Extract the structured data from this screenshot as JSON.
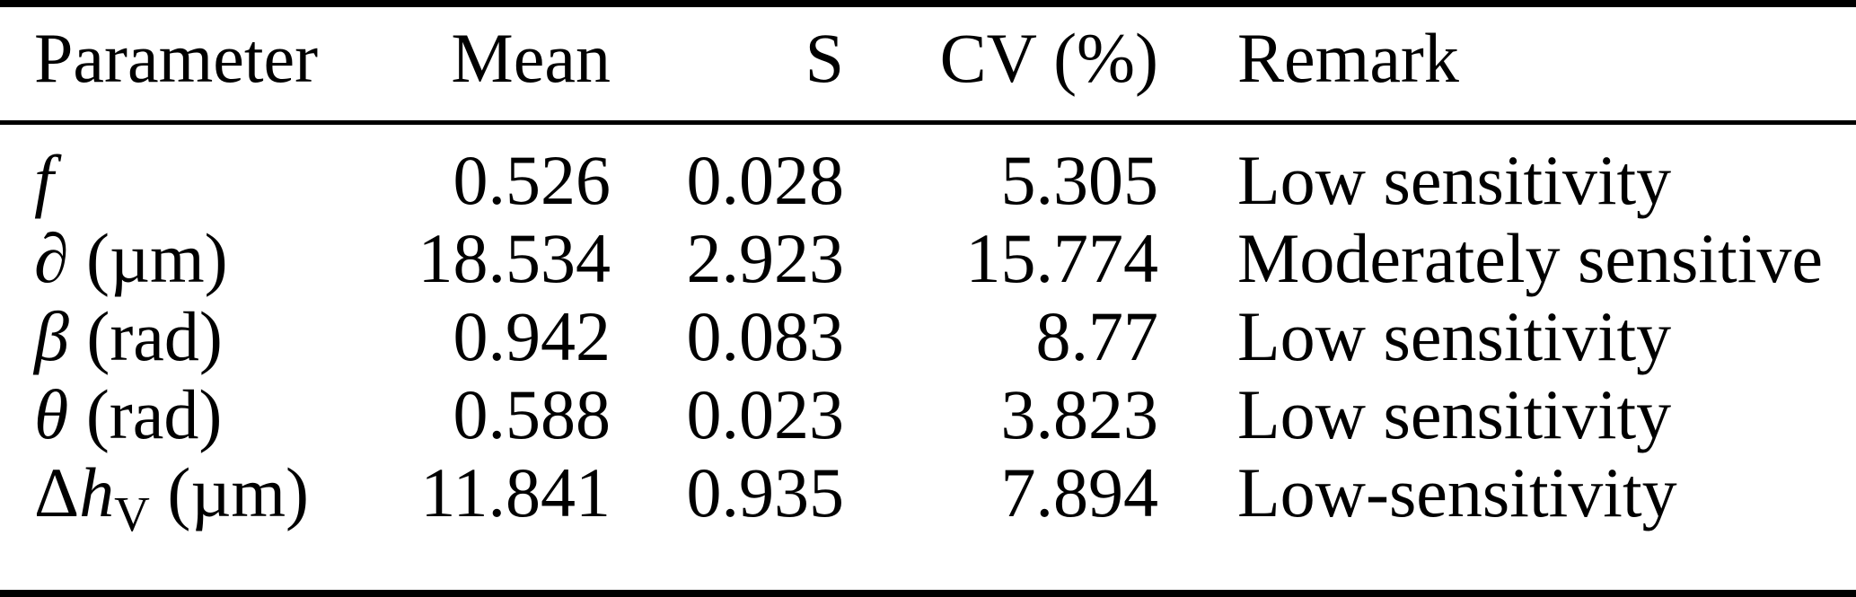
{
  "table": {
    "columns": [
      {
        "label": "Parameter",
        "align": "left"
      },
      {
        "label": "Mean",
        "align": "right"
      },
      {
        "label": "S",
        "align": "right"
      },
      {
        "label": "CV (%)",
        "align": "right"
      },
      {
        "label": "Remark",
        "align": "left"
      }
    ],
    "rows": [
      {
        "parameter": {
          "prefix": "",
          "symbol": "f",
          "subscript": "",
          "unit": ""
        },
        "mean": "0.526",
        "s": "0.028",
        "cv": "5.305",
        "remark": "Low sensitivity"
      },
      {
        "parameter": {
          "prefix": "",
          "symbol": "∂",
          "subscript": "",
          "unit": "(µm)"
        },
        "mean": "18.534",
        "s": "2.923",
        "cv": "15.774",
        "remark": "Moderately sensitive"
      },
      {
        "parameter": {
          "prefix": "",
          "symbol": "β",
          "subscript": "",
          "unit": "(rad)"
        },
        "mean": "0.942",
        "s": "0.083",
        "cv": "8.77",
        "remark": "Low sensitivity"
      },
      {
        "parameter": {
          "prefix": "",
          "symbol": "θ",
          "subscript": "",
          "unit": "(rad)"
        },
        "mean": "0.588",
        "s": "0.023",
        "cv": "3.823",
        "remark": "Low sensitivity"
      },
      {
        "parameter": {
          "prefix": "Δ",
          "symbol": "h",
          "subscript": "V",
          "unit": "(µm)"
        },
        "mean": "11.841",
        "s": "0.935",
        "cv": "7.894",
        "remark": "Low-sensitivity"
      }
    ]
  },
  "colors": {
    "text": "#000000",
    "background": "#ffffff",
    "rule": "#000000"
  }
}
